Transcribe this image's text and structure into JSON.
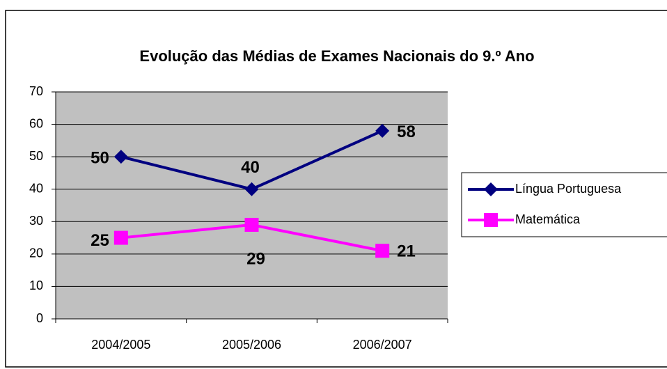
{
  "chart_data": {
    "type": "line",
    "title": "Evolução das Médias de Exames Nacionais do 9.º Ano",
    "categories": [
      "2004/2005",
      "2005/2006",
      "2006/2007"
    ],
    "series": [
      {
        "name": "Língua Portuguesa",
        "color": "#000080",
        "marker": "diamond",
        "values": [
          50,
          40,
          58
        ]
      },
      {
        "name": "Matemática",
        "color": "#ff00ff",
        "marker": "square",
        "values": [
          25,
          29,
          21
        ]
      }
    ],
    "ylim": [
      0,
      70
    ],
    "yticks": [
      0,
      10,
      20,
      30,
      40,
      50,
      60,
      70
    ],
    "grid": true,
    "legend": "right"
  }
}
